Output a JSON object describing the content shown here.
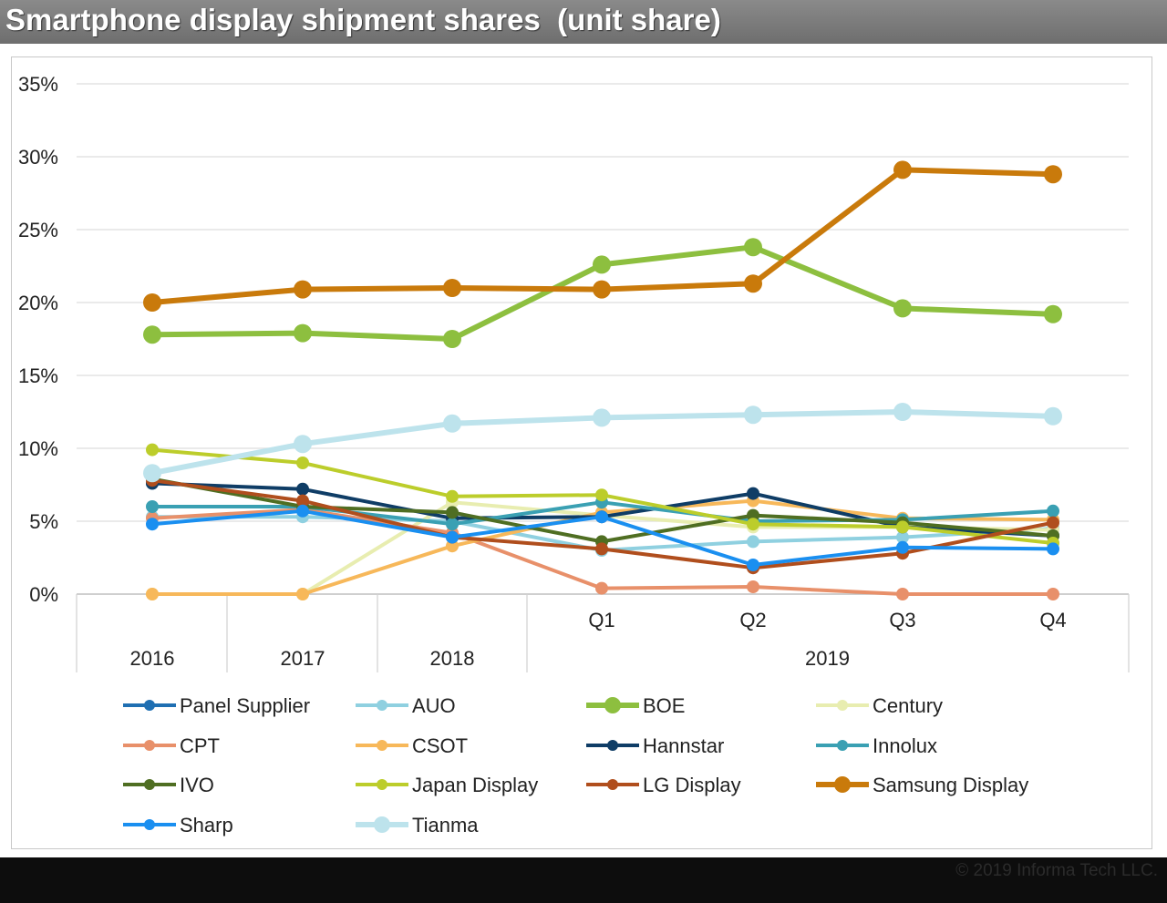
{
  "title": "Smartphone display shipment shares  (unit share)",
  "copyright": "© 2019 Informa Tech LLC.",
  "chart_data": {
    "type": "line",
    "y_ticks": [
      "35%",
      "30%",
      "25%",
      "20%",
      "15%",
      "10%",
      "5%",
      "0%"
    ],
    "ylim": [
      0,
      35
    ],
    "grid": true,
    "legend_position": "bottom",
    "x": [
      "2016",
      "2017",
      "2018",
      "2019 Q1",
      "2019 Q2",
      "2019 Q3",
      "2019 Q4"
    ],
    "x_tick_labels": [
      "",
      "",
      "",
      "Q1",
      "Q2",
      "Q3",
      "Q4"
    ],
    "x_group_labels": [
      {
        "label": "2016",
        "span": [
          0,
          0
        ]
      },
      {
        "label": "2017",
        "span": [
          1,
          1
        ]
      },
      {
        "label": "2018",
        "span": [
          2,
          2
        ]
      },
      {
        "label": "2019",
        "span": [
          3,
          6
        ]
      }
    ],
    "series": [
      {
        "name": "Panel Supplier",
        "color": "#1f6fb2",
        "weight": "small",
        "values": [
          7.6,
          null,
          null,
          null,
          null,
          null,
          null
        ]
      },
      {
        "name": "AUO",
        "color": "#8fd0e0",
        "weight": "small",
        "values": [
          5.3,
          5.3,
          5.0,
          3.0,
          3.6,
          3.9,
          4.5
        ]
      },
      {
        "name": "BOE",
        "color": "#8dbf3f",
        "weight": "large",
        "values": [
          17.8,
          17.9,
          17.5,
          22.6,
          23.8,
          19.6,
          19.2
        ]
      },
      {
        "name": "Century",
        "color": "#e8edb0",
        "weight": "small",
        "values": [
          0,
          0,
          6.3,
          5.4,
          4.6,
          4.6,
          4.4
        ]
      },
      {
        "name": "CPT",
        "color": "#e8906a",
        "weight": "small",
        "values": [
          5.2,
          5.8,
          4.2,
          0.4,
          0.5,
          0,
          0
        ]
      },
      {
        "name": "CSOT",
        "color": "#f7b85a",
        "weight": "small",
        "values": [
          0,
          0,
          3.3,
          5.6,
          6.4,
          5.2,
          5.1
        ]
      },
      {
        "name": "Hannstar",
        "color": "#0f3d66",
        "weight": "small",
        "values": [
          7.6,
          7.2,
          5.2,
          5.3,
          6.9,
          4.6,
          4.0
        ]
      },
      {
        "name": "Innolux",
        "color": "#3aa0b3",
        "weight": "small",
        "values": [
          6.0,
          6.0,
          4.8,
          6.3,
          5.0,
          5.1,
          5.7
        ]
      },
      {
        "name": "IVO",
        "color": "#4f6e22",
        "weight": "small",
        "values": [
          7.9,
          6.0,
          5.6,
          3.6,
          5.4,
          4.9,
          4.0
        ]
      },
      {
        "name": "Japan Display",
        "color": "#bccd2b",
        "weight": "small",
        "values": [
          9.9,
          9.0,
          6.7,
          6.8,
          4.8,
          4.6,
          3.5
        ]
      },
      {
        "name": "LG Display",
        "color": "#b04e1d",
        "weight": "small",
        "values": [
          7.8,
          6.4,
          3.9,
          3.1,
          1.8,
          2.8,
          4.9
        ]
      },
      {
        "name": "Samsung Display",
        "color": "#c97a0b",
        "weight": "large",
        "values": [
          20.0,
          20.9,
          21.0,
          20.9,
          21.3,
          29.1,
          28.8
        ]
      },
      {
        "name": "Sharp",
        "color": "#1a8ff0",
        "weight": "small",
        "values": [
          4.8,
          5.7,
          3.9,
          5.3,
          2.0,
          3.2,
          3.1
        ]
      },
      {
        "name": "Tianma",
        "color": "#bde3ec",
        "weight": "large",
        "values": [
          8.3,
          10.3,
          11.7,
          12.1,
          12.3,
          12.5,
          12.2
        ]
      }
    ]
  }
}
